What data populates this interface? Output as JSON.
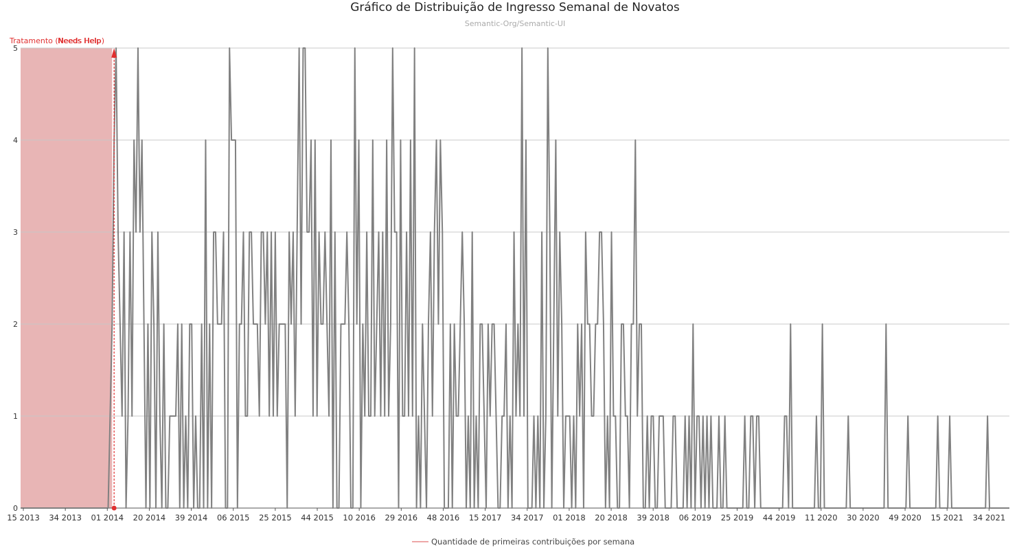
{
  "chart_data": {
    "type": "line",
    "title": "Gráfico de Distribuição de Ingresso Semanal de Novatos",
    "subtitle": "Semantic-Org/Semantic-UI",
    "ylim": [
      0,
      5
    ],
    "y_ticks": [
      "0",
      "1",
      "2",
      "3",
      "4",
      "5"
    ],
    "x_tick_labels": [
      "15 2013",
      "34 2013",
      "01 2014",
      "20 2014",
      "39 2014",
      "06 2015",
      "25 2015",
      "44 2015",
      "10 2016",
      "29 2016",
      "48 2016",
      "15 2017",
      "34 2017",
      "01 2018",
      "20 2018",
      "39 2018",
      "06 2019",
      "25 2019",
      "44 2019",
      "11 2020",
      "30 2020",
      "49 2020",
      "15 2021",
      "34 2021"
    ],
    "grid": "horizontal",
    "legend_position": "bottom-center",
    "series": [
      {
        "name": "Quantidade de primeiras contribuições por semana",
        "color": "#808080",
        "values": [
          0,
          0,
          0,
          0,
          0,
          0,
          0,
          0,
          0,
          0,
          0,
          0,
          0,
          0,
          0,
          0,
          0,
          0,
          0,
          0,
          0,
          0,
          0,
          0,
          0,
          0,
          0,
          0,
          0,
          0,
          0,
          0,
          0,
          0,
          0,
          0,
          0,
          0,
          0,
          0,
          0,
          0,
          0,
          0,
          0,
          1,
          2,
          4,
          5,
          3,
          2,
          1,
          3,
          0,
          1,
          3,
          1,
          4,
          3,
          5,
          3,
          4,
          2,
          0,
          2,
          0,
          3,
          2,
          0,
          3,
          1,
          0,
          2,
          0,
          0,
          1,
          1,
          1,
          1,
          2,
          0,
          2,
          0,
          1,
          0,
          2,
          2,
          0,
          1,
          0,
          0,
          2,
          0,
          4,
          0,
          2,
          0,
          3,
          3,
          2,
          2,
          2,
          3,
          0,
          0,
          5,
          4,
          4,
          4,
          0,
          2,
          2,
          3,
          1,
          1,
          3,
          3,
          2,
          2,
          2,
          1,
          3,
          3,
          2,
          3,
          1,
          3,
          1,
          3,
          1,
          2,
          2,
          2,
          2,
          0,
          3,
          2,
          3,
          1,
          3,
          5,
          2,
          5,
          5,
          3,
          3,
          4,
          1,
          4,
          1,
          3,
          2,
          2,
          3,
          2,
          1,
          4,
          0,
          3,
          0,
          0,
          2,
          2,
          2,
          3,
          2,
          0,
          0,
          5,
          2,
          4,
          0,
          2,
          1,
          3,
          1,
          1,
          4,
          1,
          2,
          3,
          1,
          3,
          1,
          4,
          1,
          2,
          5,
          3,
          3,
          0,
          4,
          1,
          1,
          3,
          1,
          4,
          1,
          5,
          0,
          1,
          0,
          2,
          1,
          0,
          2,
          3,
          1,
          3,
          4,
          2,
          4,
          3,
          0,
          0,
          0,
          2,
          0,
          2,
          1,
          1,
          2,
          3,
          2,
          0,
          1,
          0,
          3,
          0,
          1,
          0,
          2,
          2,
          1,
          0,
          2,
          1,
          2,
          2,
          1,
          0,
          0,
          1,
          1,
          2,
          0,
          1,
          0,
          3,
          1,
          2,
          1,
          5,
          1,
          4,
          0,
          0,
          0,
          1,
          0,
          1,
          0,
          3,
          0,
          1,
          5,
          3,
          0,
          2,
          4,
          1,
          3,
          2,
          0,
          1,
          1,
          1,
          0,
          1,
          0,
          2,
          1,
          2,
          0,
          3,
          2,
          2,
          1,
          1,
          2,
          2,
          3,
          3,
          2,
          0,
          1,
          0,
          3,
          1,
          1,
          0,
          0,
          2,
          2,
          1,
          1,
          0,
          2,
          2,
          4,
          1,
          2,
          2,
          0,
          0,
          1,
          0,
          1,
          1,
          0,
          0,
          1,
          1,
          1,
          0,
          0,
          0,
          0,
          1,
          1,
          0,
          0,
          0,
          0,
          1,
          0,
          1,
          0,
          2,
          0,
          1,
          1,
          0,
          1,
          0,
          1,
          0,
          1,
          0,
          0,
          0,
          1,
          0,
          0,
          1,
          0,
          0,
          0,
          0,
          0,
          0,
          0,
          0,
          0,
          1,
          0,
          0,
          1,
          1,
          0,
          1,
          1,
          0,
          0,
          0,
          0,
          0,
          0,
          0,
          0,
          0,
          0,
          0,
          0,
          1,
          1,
          0,
          2,
          0,
          0,
          0,
          0,
          0,
          0,
          0,
          0,
          0,
          0,
          0,
          0,
          1,
          0,
          0,
          2,
          0,
          0,
          0,
          0,
          0,
          0,
          0,
          0,
          0,
          0,
          0,
          0,
          1,
          0,
          0,
          0,
          0,
          0,
          0,
          0,
          0,
          0,
          0,
          0,
          0,
          0,
          0,
          0,
          0,
          0,
          0,
          2,
          0,
          0,
          0,
          0,
          0,
          0,
          0,
          0,
          0,
          0,
          1,
          0,
          0,
          0,
          0,
          0,
          0,
          0,
          0,
          0,
          0,
          0,
          0,
          0,
          0,
          1,
          0,
          0,
          0,
          0,
          0,
          1,
          0,
          0,
          0,
          0,
          0,
          0,
          0,
          0,
          0,
          0,
          0,
          0,
          0,
          0,
          0,
          0,
          0,
          0,
          1,
          0,
          0,
          0,
          0,
          0,
          0,
          0,
          0,
          0,
          0,
          0
        ]
      }
    ],
    "shaded_region": {
      "from_week_index": 0,
      "to_week_index": 46,
      "color": "#d67979"
    },
    "annotations": [
      {
        "text": "Tratamento (Needs Help)",
        "week_index": 47,
        "color": "#e03030"
      },
      {
        "text": "Needs Help",
        "color": "#e03030"
      }
    ]
  }
}
